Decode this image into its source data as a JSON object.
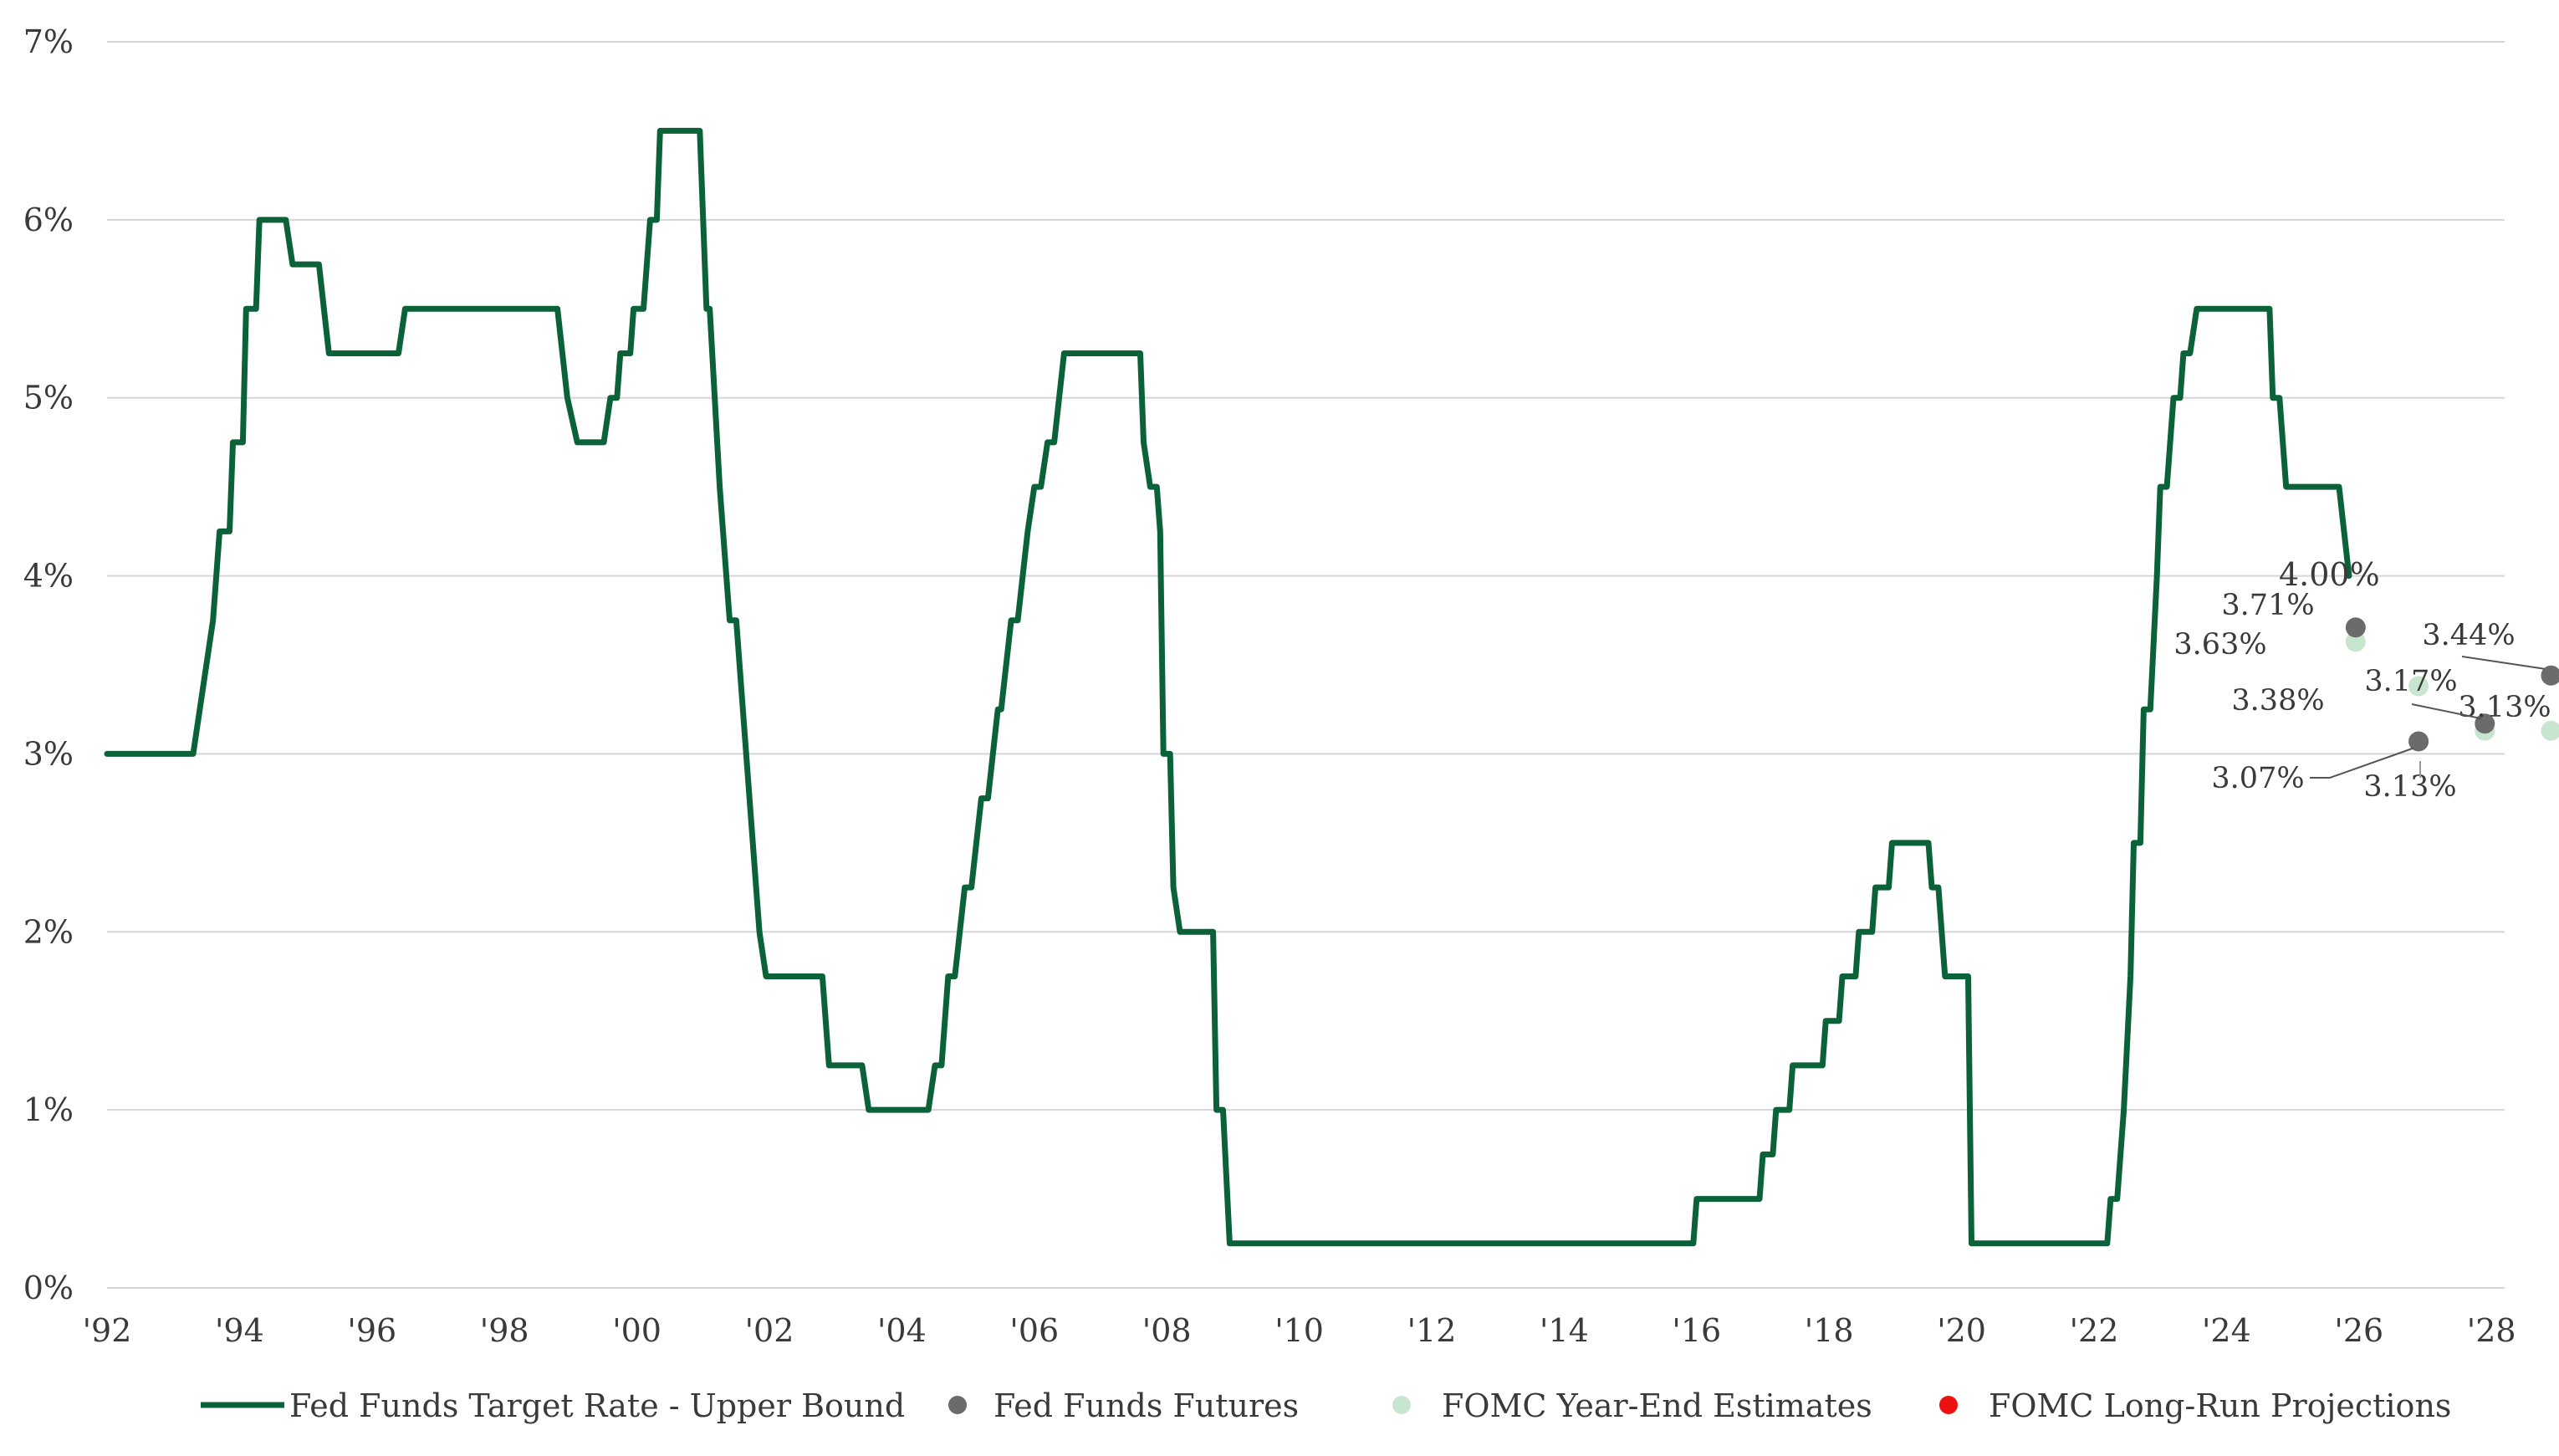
{
  "chart_data": {
    "type": "line",
    "title": "",
    "xlabel": "",
    "ylabel": "",
    "xlim": [
      1992,
      2028.6
    ],
    "ylim": [
      0,
      7
    ],
    "grid": "horizontal",
    "legend_position": "bottom",
    "colors": {
      "rate": "#0b6138",
      "futures": "#6b6b6b",
      "fomc_year_end": "#c8e6cf",
      "fomc_long_run": "#ee1111"
    },
    "x_ticks": [
      {
        "value": 1992,
        "label": "'92"
      },
      {
        "value": 1994,
        "label": "'94"
      },
      {
        "value": 1996,
        "label": "'96"
      },
      {
        "value": 1998,
        "label": "'98"
      },
      {
        "value": 2000,
        "label": "'00"
      },
      {
        "value": 2002,
        "label": "'02"
      },
      {
        "value": 2004,
        "label": "'04"
      },
      {
        "value": 2006,
        "label": "'06"
      },
      {
        "value": 2008,
        "label": "'08"
      },
      {
        "value": 2010,
        "label": "'10"
      },
      {
        "value": 2012,
        "label": "'12"
      },
      {
        "value": 2014,
        "label": "'14"
      },
      {
        "value": 2016,
        "label": "'16"
      },
      {
        "value": 2018,
        "label": "'18"
      },
      {
        "value": 2020,
        "label": "'20"
      },
      {
        "value": 2022,
        "label": "'22"
      },
      {
        "value": 2024,
        "label": "'24"
      },
      {
        "value": 2026,
        "label": "'26"
      },
      {
        "value": 2028,
        "label": "'28"
      }
    ],
    "y_ticks": [
      {
        "value": 0,
        "label": "0%"
      },
      {
        "value": 1,
        "label": "1%"
      },
      {
        "value": 2,
        "label": "2%"
      },
      {
        "value": 3,
        "label": "3%"
      },
      {
        "value": 4,
        "label": "4%"
      },
      {
        "value": 5,
        "label": "5%"
      },
      {
        "value": 6,
        "label": "6%"
      },
      {
        "value": 7,
        "label": "7%"
      }
    ],
    "series": [
      {
        "name": "Fed Funds Target Rate - Upper Bound",
        "type": "line",
        "points": [
          [
            1992.0,
            3.0
          ],
          [
            1993.3,
            3.0
          ],
          [
            1993.6,
            3.75
          ],
          [
            1993.7,
            4.25
          ],
          [
            1993.85,
            4.25
          ],
          [
            1993.9,
            4.75
          ],
          [
            1994.05,
            4.75
          ],
          [
            1994.1,
            5.5
          ],
          [
            1994.25,
            5.5
          ],
          [
            1994.3,
            6.0
          ],
          [
            1994.7,
            6.0
          ],
          [
            1994.8,
            5.75
          ],
          [
            1995.2,
            5.75
          ],
          [
            1995.35,
            5.25
          ],
          [
            1996.4,
            5.25
          ],
          [
            1996.5,
            5.5
          ],
          [
            1998.8,
            5.5
          ],
          [
            1998.95,
            5.0
          ],
          [
            1999.1,
            4.75
          ],
          [
            1999.5,
            4.75
          ],
          [
            1999.6,
            5.0
          ],
          [
            1999.7,
            5.0
          ],
          [
            1999.75,
            5.25
          ],
          [
            1999.9,
            5.25
          ],
          [
            1999.95,
            5.5
          ],
          [
            2000.1,
            5.5
          ],
          [
            2000.2,
            6.0
          ],
          [
            2000.3,
            6.0
          ],
          [
            2000.35,
            6.5
          ],
          [
            2000.95,
            6.5
          ],
          [
            2001.05,
            5.5
          ],
          [
            2001.1,
            5.5
          ],
          [
            2001.25,
            4.5
          ],
          [
            2001.4,
            3.75
          ],
          [
            2001.5,
            3.75
          ],
          [
            2001.6,
            3.25
          ],
          [
            2001.75,
            2.5
          ],
          [
            2001.85,
            2.0
          ],
          [
            2001.95,
            1.75
          ],
          [
            2002.8,
            1.75
          ],
          [
            2002.9,
            1.25
          ],
          [
            2003.4,
            1.25
          ],
          [
            2003.5,
            1.0
          ],
          [
            2004.4,
            1.0
          ],
          [
            2004.5,
            1.25
          ],
          [
            2004.6,
            1.25
          ],
          [
            2004.7,
            1.75
          ],
          [
            2004.8,
            1.75
          ],
          [
            2004.95,
            2.25
          ],
          [
            2005.05,
            2.25
          ],
          [
            2005.2,
            2.75
          ],
          [
            2005.3,
            2.75
          ],
          [
            2005.45,
            3.25
          ],
          [
            2005.5,
            3.25
          ],
          [
            2005.65,
            3.75
          ],
          [
            2005.75,
            3.75
          ],
          [
            2005.9,
            4.25
          ],
          [
            2006.0,
            4.5
          ],
          [
            2006.1,
            4.5
          ],
          [
            2006.2,
            4.75
          ],
          [
            2006.3,
            4.75
          ],
          [
            2006.45,
            5.25
          ],
          [
            2007.6,
            5.25
          ],
          [
            2007.65,
            4.75
          ],
          [
            2007.75,
            4.5
          ],
          [
            2007.85,
            4.5
          ],
          [
            2007.9,
            4.25
          ],
          [
            2007.95,
            3.0
          ],
          [
            2008.05,
            3.0
          ],
          [
            2008.1,
            2.25
          ],
          [
            2008.2,
            2.0
          ],
          [
            2008.7,
            2.0
          ],
          [
            2008.75,
            1.0
          ],
          [
            2008.85,
            1.0
          ],
          [
            2008.95,
            0.25
          ],
          [
            2015.95,
            0.25
          ],
          [
            2016.0,
            0.5
          ],
          [
            2016.95,
            0.5
          ],
          [
            2017.0,
            0.75
          ],
          [
            2017.15,
            0.75
          ],
          [
            2017.2,
            1.0
          ],
          [
            2017.4,
            1.0
          ],
          [
            2017.45,
            1.25
          ],
          [
            2017.9,
            1.25
          ],
          [
            2017.95,
            1.5
          ],
          [
            2018.15,
            1.5
          ],
          [
            2018.2,
            1.75
          ],
          [
            2018.4,
            1.75
          ],
          [
            2018.45,
            2.0
          ],
          [
            2018.65,
            2.0
          ],
          [
            2018.7,
            2.25
          ],
          [
            2018.9,
            2.25
          ],
          [
            2018.95,
            2.5
          ],
          [
            2019.5,
            2.5
          ],
          [
            2019.55,
            2.25
          ],
          [
            2019.65,
            2.25
          ],
          [
            2019.75,
            1.75
          ],
          [
            2020.1,
            1.75
          ],
          [
            2020.15,
            0.25
          ],
          [
            2022.2,
            0.25
          ],
          [
            2022.25,
            0.5
          ],
          [
            2022.35,
            0.5
          ],
          [
            2022.45,
            1.0
          ],
          [
            2022.55,
            1.75
          ],
          [
            2022.6,
            2.5
          ],
          [
            2022.7,
            2.5
          ],
          [
            2022.75,
            3.25
          ],
          [
            2022.85,
            3.25
          ],
          [
            2022.95,
            4.0
          ],
          [
            2023.0,
            4.5
          ],
          [
            2023.1,
            4.5
          ],
          [
            2023.2,
            5.0
          ],
          [
            2023.3,
            5.0
          ],
          [
            2023.35,
            5.25
          ],
          [
            2023.45,
            5.25
          ],
          [
            2023.55,
            5.5
          ],
          [
            2024.65,
            5.5
          ],
          [
            2024.7,
            5.0
          ],
          [
            2024.8,
            5.0
          ],
          [
            2024.9,
            4.5
          ],
          [
            2025.7,
            4.5
          ],
          [
            2025.85,
            4.0
          ]
        ]
      },
      {
        "name": "Fed Funds Futures",
        "type": "scatter",
        "points": [
          [
            2025.95,
            3.71
          ],
          [
            2026.9,
            3.07
          ],
          [
            2027.9,
            3.17
          ],
          [
            2028.9,
            3.44
          ]
        ]
      },
      {
        "name": "FOMC Year-End Estimates",
        "type": "scatter",
        "points": [
          [
            2025.95,
            3.63
          ],
          [
            2026.9,
            3.38
          ],
          [
            2027.9,
            3.13
          ],
          [
            2028.9,
            3.13
          ]
        ]
      },
      {
        "name": "FOMC Long-Run Projections",
        "type": "scatter",
        "points": []
      }
    ],
    "annotations": [
      {
        "label": "4.00%"
      },
      {
        "label": "3.71%"
      },
      {
        "label": "3.63%"
      },
      {
        "label": "3.38%"
      },
      {
        "label": "3.07%"
      },
      {
        "label": "3.17%"
      },
      {
        "label": "3.13%"
      },
      {
        "label": "3.44%"
      },
      {
        "label": "3.13%"
      }
    ]
  }
}
